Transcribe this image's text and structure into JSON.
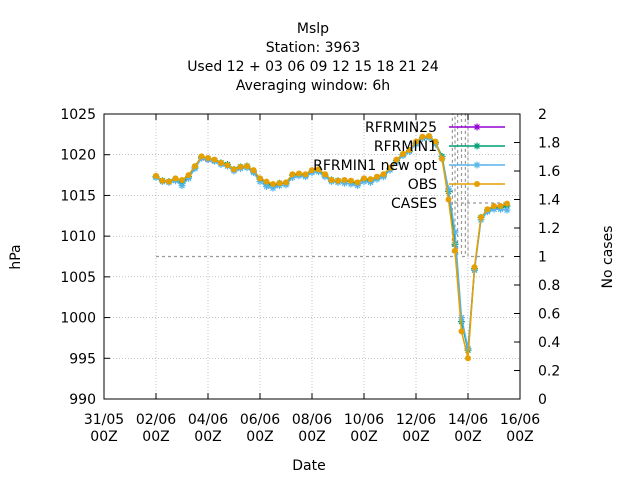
{
  "chart_data": {
    "type": "line",
    "title": [
      "Mslp",
      "Station:      3963",
      "Used  12 + 03 06 09 12 15 18 21 24",
      "Averaging window:  6h"
    ],
    "xlabel": "Date",
    "ylabel": "hPa",
    "y2label": "No cases",
    "xlim": [
      0,
      16
    ],
    "ylim": [
      990,
      1025
    ],
    "y2lim": [
      0,
      2
    ],
    "grid": true,
    "legend_position": "top-right",
    "x_ticks": [
      {
        "x": 0,
        "label": [
          "31/05",
          "00Z"
        ]
      },
      {
        "x": 2,
        "label": [
          "02/06",
          "00Z"
        ]
      },
      {
        "x": 4,
        "label": [
          "04/06",
          "00Z"
        ]
      },
      {
        "x": 6,
        "label": [
          "06/06",
          "00Z"
        ]
      },
      {
        "x": 8,
        "label": [
          "08/06",
          "00Z"
        ]
      },
      {
        "x": 10,
        "label": [
          "10/06",
          "00Z"
        ]
      },
      {
        "x": 12,
        "label": [
          "12/06",
          "00Z"
        ]
      },
      {
        "x": 14,
        "label": [
          "14/06",
          "00Z"
        ]
      },
      {
        "x": 16,
        "label": [
          "16/06",
          "00Z"
        ]
      }
    ],
    "y_ticks": [
      990,
      995,
      1000,
      1005,
      1010,
      1015,
      1020,
      1025
    ],
    "y2_ticks": [
      "0",
      "0.2",
      "0.4",
      "0.6",
      "0.8",
      "1",
      "1.2",
      "1.4",
      "1.6",
      "1.8",
      "2"
    ],
    "series": [
      {
        "name": "RFRMIN25",
        "color": "#9400d3",
        "marker": "star",
        "x": [
          3.75,
          4.0,
          4.25
        ],
        "y": [
          1019.6,
          1019.4,
          1019.3
        ]
      },
      {
        "name": "RFRMIN1",
        "color": "#009e73",
        "marker": "star",
        "x": [
          2.0,
          2.25,
          2.5,
          2.75,
          3.0,
          3.25,
          3.5,
          3.75,
          4.0,
          4.25,
          4.5,
          4.75,
          5.0,
          5.25,
          5.5,
          5.75,
          6.0,
          6.25,
          6.5,
          6.75,
          7.0,
          7.25,
          7.5,
          7.75,
          8.0,
          8.25,
          8.5,
          8.75,
          9.0,
          9.25,
          9.5,
          9.75,
          10.0,
          10.25,
          10.5,
          10.75,
          11.0,
          11.25,
          11.5,
          11.75,
          12.0,
          12.25,
          12.5,
          12.75,
          13.0,
          13.25,
          13.5,
          13.75,
          14.0,
          14.25,
          14.5,
          14.75,
          15.0,
          15.25,
          15.5
        ],
        "y": [
          1017.3,
          1016.8,
          1016.7,
          1017.0,
          1016.5,
          1017.3,
          1018.5,
          1019.7,
          1019.5,
          1019.3,
          1019.0,
          1018.8,
          1018.2,
          1018.5,
          1018.6,
          1018.0,
          1017.0,
          1016.5,
          1016.2,
          1016.5,
          1016.5,
          1017.5,
          1017.6,
          1017.5,
          1018.0,
          1018.1,
          1017.5,
          1016.9,
          1016.8,
          1016.8,
          1016.7,
          1016.5,
          1017.0,
          1016.8,
          1017.2,
          1017.5,
          1018.3,
          1019.3,
          1020.0,
          1020.5,
          1021.4,
          1022.1,
          1022.2,
          1021.5,
          1019.8,
          1015.5,
          1009.0,
          999.5,
          996.0,
          1006.0,
          1012.3,
          1013.2,
          1013.5,
          1013.5,
          1013.7
        ]
      },
      {
        "name": "RFRMIN1 new opt",
        "color": "#56b4e9",
        "marker": "star",
        "x": [
          2.0,
          2.25,
          2.5,
          2.75,
          3.0,
          3.25,
          3.5,
          3.75,
          4.0,
          4.25,
          4.5,
          4.75,
          5.0,
          5.25,
          5.5,
          5.75,
          6.0,
          6.25,
          6.5,
          6.75,
          7.0,
          7.25,
          7.5,
          7.75,
          8.0,
          8.25,
          8.5,
          8.75,
          9.0,
          9.25,
          9.5,
          9.75,
          10.0,
          10.25,
          10.5,
          10.75,
          11.0,
          11.25,
          11.5,
          11.75,
          12.0,
          12.25,
          12.5,
          12.75,
          13.0,
          13.25,
          13.5,
          13.75,
          14.0,
          14.25,
          14.5,
          14.75,
          15.0,
          15.25,
          15.5
        ],
        "y": [
          1017.2,
          1016.7,
          1016.6,
          1016.8,
          1016.2,
          1017.1,
          1018.3,
          1019.6,
          1019.4,
          1019.2,
          1018.8,
          1018.6,
          1018.0,
          1018.3,
          1018.4,
          1017.8,
          1016.7,
          1016.1,
          1015.9,
          1016.2,
          1016.3,
          1017.2,
          1017.4,
          1017.3,
          1017.8,
          1017.9,
          1017.3,
          1016.7,
          1016.6,
          1016.5,
          1016.4,
          1016.2,
          1016.7,
          1016.6,
          1017.0,
          1017.3,
          1018.1,
          1019.1,
          1019.9,
          1020.4,
          1021.3,
          1022.0,
          1022.1,
          1021.3,
          1019.5,
          1015.8,
          1010.5,
          1000.0,
          996.2,
          1005.8,
          1012.0,
          1013.0,
          1013.3,
          1013.3,
          1013.2
        ]
      },
      {
        "name": "OBS",
        "color": "#e69f00",
        "marker": "circle",
        "x": [
          2.0,
          2.25,
          2.5,
          2.75,
          3.0,
          3.25,
          3.5,
          3.75,
          4.0,
          4.25,
          4.5,
          4.75,
          5.0,
          5.25,
          5.5,
          5.75,
          6.0,
          6.25,
          6.5,
          6.75,
          7.0,
          7.25,
          7.5,
          7.75,
          8.0,
          8.25,
          8.5,
          8.75,
          9.0,
          9.25,
          9.5,
          9.75,
          10.0,
          10.25,
          10.5,
          10.75,
          11.0,
          11.25,
          11.5,
          11.75,
          12.0,
          12.25,
          12.5,
          12.75,
          13.0,
          13.25,
          13.5,
          13.75,
          14.0,
          14.25,
          14.5,
          14.75,
          15.0,
          15.25,
          15.5
        ],
        "y": [
          1017.4,
          1016.8,
          1016.7,
          1017.1,
          1016.9,
          1017.5,
          1018.6,
          1019.8,
          1019.6,
          1019.4,
          1019.0,
          1018.7,
          1018.2,
          1018.5,
          1018.6,
          1018.1,
          1017.1,
          1016.7,
          1016.4,
          1016.5,
          1016.6,
          1017.6,
          1017.7,
          1017.6,
          1018.1,
          1018.2,
          1017.6,
          1016.9,
          1016.8,
          1016.9,
          1016.8,
          1016.6,
          1017.1,
          1017.0,
          1017.3,
          1017.6,
          1018.4,
          1019.4,
          1020.1,
          1020.6,
          1021.6,
          1022.2,
          1022.3,
          1021.6,
          1019.5,
          1014.5,
          1008.2,
          998.3,
          995.0,
          1006.2,
          1012.3,
          1013.3,
          1013.7,
          1013.7,
          1014.0
        ]
      },
      {
        "name": "CASES",
        "color": "#999999",
        "style": "dashed-steps",
        "axis": "y2",
        "x": [
          2.0,
          13.25,
          13.4,
          13.5,
          13.6,
          13.75,
          13.9,
          14.0,
          14.25,
          15.5
        ],
        "y": [
          1,
          1,
          2,
          1,
          2,
          1,
          2,
          1,
          1,
          1
        ]
      }
    ]
  }
}
